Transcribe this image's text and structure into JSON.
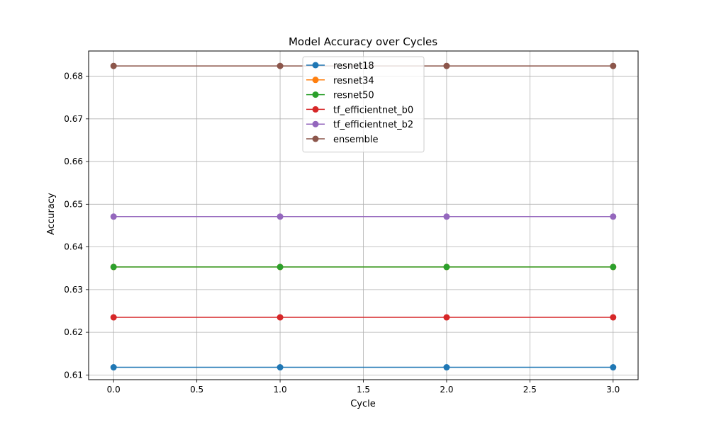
{
  "chart_data": {
    "type": "line",
    "title": "Model Accuracy over Cycles",
    "xlabel": "Cycle",
    "ylabel": "Accuracy",
    "xlim": [
      -0.15,
      3.15
    ],
    "ylim": [
      0.6089,
      0.6859
    ],
    "xticks": [
      0.0,
      0.5,
      1.0,
      1.5,
      2.0,
      2.5,
      3.0
    ],
    "xtick_labels": [
      "0.0",
      "0.5",
      "1.0",
      "1.5",
      "2.0",
      "2.5",
      "3.0"
    ],
    "yticks": [
      0.61,
      0.62,
      0.63,
      0.64,
      0.65,
      0.66,
      0.67,
      0.68
    ],
    "ytick_labels": [
      "0.61",
      "0.62",
      "0.63",
      "0.64",
      "0.65",
      "0.66",
      "0.67",
      "0.68"
    ],
    "grid": true,
    "legend_position": "top-center",
    "x": [
      0,
      1,
      2,
      3
    ],
    "series": [
      {
        "name": "resnet18",
        "color": "#1f77b4",
        "values": [
          0.6118,
          0.6118,
          0.6118,
          0.6118
        ]
      },
      {
        "name": "resnet34",
        "color": "#ff7f0e",
        "values": [
          0.6353,
          0.6353,
          0.6353,
          0.6353
        ]
      },
      {
        "name": "resnet50",
        "color": "#2ca02c",
        "values": [
          0.6353,
          0.6353,
          0.6353,
          0.6353
        ]
      },
      {
        "name": "tf_efficientnet_b0",
        "color": "#d62728",
        "values": [
          0.6235,
          0.6235,
          0.6235,
          0.6235
        ]
      },
      {
        "name": "tf_efficientnet_b2",
        "color": "#9467bd",
        "values": [
          0.6471,
          0.6471,
          0.6471,
          0.6471
        ]
      },
      {
        "name": "ensemble",
        "color": "#8c564b",
        "values": [
          0.6824,
          0.6824,
          0.6824,
          0.6824
        ]
      }
    ]
  }
}
